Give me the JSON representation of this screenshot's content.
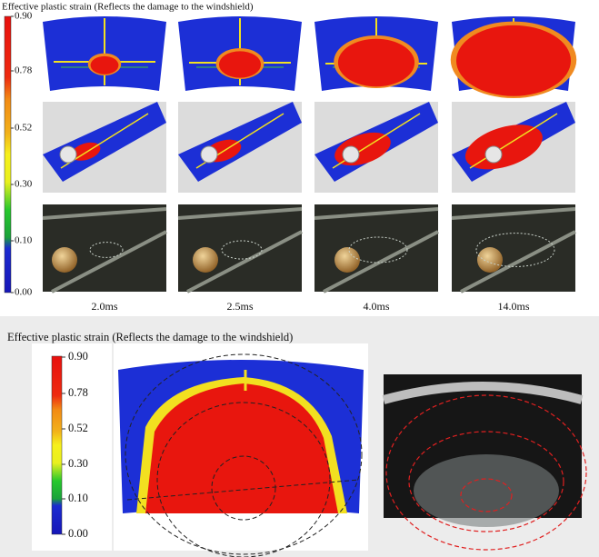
{
  "top": {
    "title": "Effective plastic strain (Reflects the damage to the windshield)",
    "colorbar_labels": [
      "0.90",
      "0.78",
      "0.52",
      "0.30",
      "0.10",
      "0.00"
    ],
    "time_labels": [
      "2.0ms",
      "2.5ms",
      "4.0ms",
      "14.0ms"
    ]
  },
  "bottom": {
    "title": "Effective plastic strain (Reflects the damage to the windshield)",
    "colorbar_labels": [
      "0.90",
      "0.78",
      "0.52",
      "0.30",
      "0.10",
      "0.00"
    ]
  }
}
